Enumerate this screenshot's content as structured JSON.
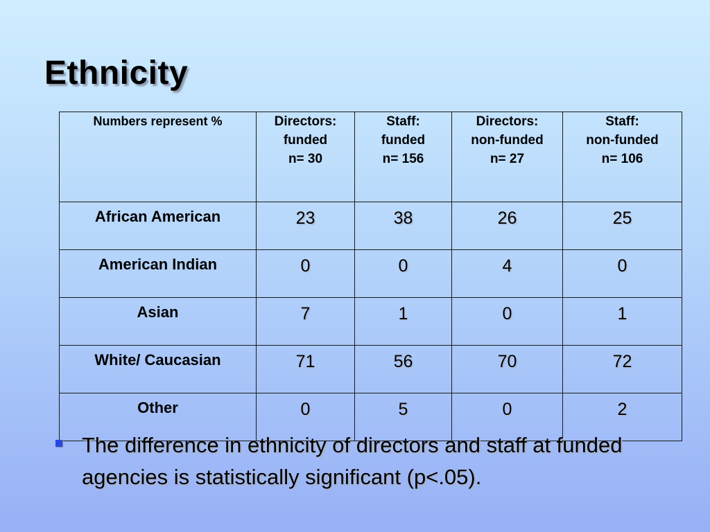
{
  "slide": {
    "title": "Ethnicity"
  },
  "table": {
    "corner_label": "Numbers represent %",
    "columns": [
      {
        "line1": "Directors:",
        "line2": "funded",
        "line3": "n= 30"
      },
      {
        "line1": "Staff:",
        "line2": "funded",
        "line3": "n= 156"
      },
      {
        "line1": "Directors:",
        "line2": "non-funded",
        "line3": "n= 27"
      },
      {
        "line1": "Staff:",
        "line2": "non-funded",
        "line3": "n= 106"
      }
    ],
    "rows": [
      {
        "label": "African American",
        "values": [
          "23",
          "38",
          "26",
          "25"
        ]
      },
      {
        "label": "American Indian",
        "values": [
          "0",
          "0",
          "4",
          "0"
        ]
      },
      {
        "label": "Asian",
        "values": [
          "7",
          "1",
          "0",
          "1"
        ]
      },
      {
        "label": "White/ Caucasian",
        "values": [
          "71",
          "56",
          "70",
          "72"
        ]
      },
      {
        "label": "Other",
        "values": [
          "0",
          "5",
          "0",
          "2"
        ]
      }
    ]
  },
  "bullets": [
    {
      "text": "The difference in ethnicity of directors and staff at funded agencies is statistically significant (p<.05)."
    }
  ],
  "colors": {
    "bullet_marker": "#2a45e0",
    "background_top": "#cfeeff",
    "background_bottom": "#97b0f6"
  }
}
